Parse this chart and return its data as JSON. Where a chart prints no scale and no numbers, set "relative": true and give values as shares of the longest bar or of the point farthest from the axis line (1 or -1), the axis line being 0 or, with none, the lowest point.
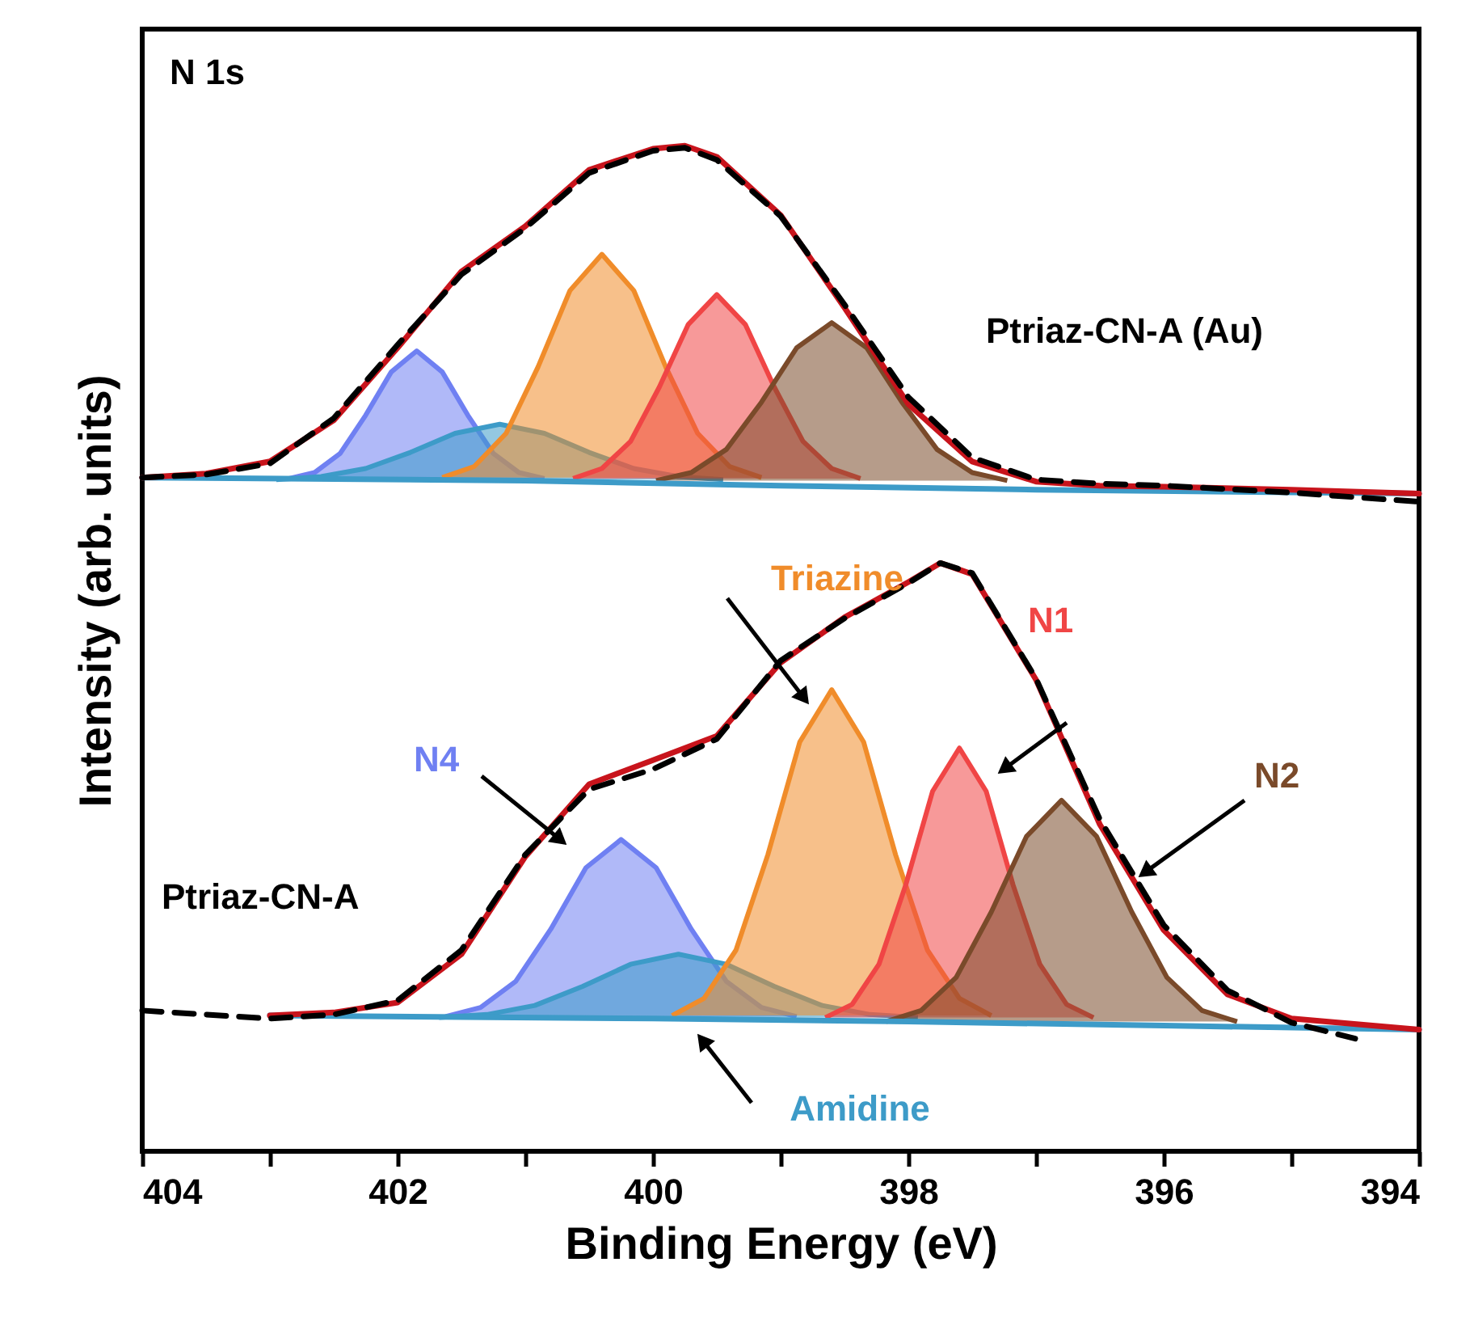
{
  "chart_data": {
    "type": "line",
    "relative": true,
    "xlabel": "Binding  Energy (eV)",
    "ylabel": "Intensity (arb. units)",
    "xlim": [
      404,
      394
    ],
    "xticks": [
      404,
      {
        "value": 403,
        "label": null
      },
      402,
      {
        "value": 401,
        "label": null
      },
      400,
      {
        "value": 399,
        "label": null
      },
      398,
      {
        "value": 397,
        "label": null
      },
      396,
      {
        "value": 395,
        "label": null
      },
      394
    ],
    "annotations": [
      "N 1s",
      "Ptriaz-CN-A (Au)",
      "Ptriaz-CN-A"
    ],
    "series": [
      {
        "type": "area",
        "color": "#6f80f2",
        "x": [
          402.85,
          402.65,
          402.45,
          402.25,
          402.05,
          401.85,
          401.65,
          401.45,
          401.25,
          401.05,
          400.85
        ],
        "values": [
          0.669,
          0.675,
          0.694,
          0.732,
          0.775,
          0.796,
          0.775,
          0.732,
          0.694,
          0.675,
          0.669
        ]
      },
      {
        "type": "area",
        "color": "#3d9bc8",
        "x": [
          402.95,
          402.6,
          402.25,
          401.9,
          401.55,
          401.2,
          400.85,
          400.5,
          400.15,
          399.8,
          399.45
        ],
        "values": [
          0.668,
          0.671,
          0.679,
          0.695,
          0.714,
          0.723,
          0.714,
          0.695,
          0.679,
          0.671,
          0.668
        ]
      },
      {
        "type": "area",
        "color": "#f08c2a",
        "x": [
          401.65,
          401.4,
          401.15,
          400.9,
          400.65,
          400.4,
          400.15,
          399.9,
          399.65,
          399.4,
          399.15
        ],
        "values": [
          0.67,
          0.681,
          0.714,
          0.78,
          0.856,
          0.892,
          0.856,
          0.78,
          0.714,
          0.681,
          0.67
        ]
      },
      {
        "type": "area",
        "color": "#f04545",
        "x": [
          400.625,
          400.4,
          400.175,
          399.95,
          399.725,
          399.5,
          399.275,
          399.05,
          398.825,
          398.6,
          398.375
        ],
        "values": [
          0.669,
          0.679,
          0.706,
          0.76,
          0.822,
          0.852,
          0.822,
          0.76,
          0.706,
          0.679,
          0.669
        ]
      },
      {
        "type": "area",
        "color": "#7a4a2a",
        "x": [
          399.975,
          399.7,
          399.425,
          399.15,
          398.875,
          398.6,
          398.325,
          398.05,
          397.775,
          397.5,
          397.225
        ],
        "values": [
          0.667,
          0.675,
          0.698,
          0.745,
          0.799,
          0.824,
          0.799,
          0.745,
          0.698,
          0.675,
          0.667
        ]
      },
      {
        "type": "area",
        "name": "N4",
        "color": "#6f80f2",
        "x": [
          401.625,
          401.35,
          401.075,
          400.8,
          400.525,
          400.25,
          399.975,
          399.7,
          399.425,
          399.15,
          398.875
        ],
        "values": [
          0.134,
          0.143,
          0.169,
          0.221,
          0.282,
          0.31,
          0.282,
          0.221,
          0.169,
          0.143,
          0.134
        ]
      },
      {
        "type": "area",
        "name": "Amidine",
        "color": "#3d9bc8",
        "x": [
          401.675,
          401.3,
          400.925,
          400.55,
          400.175,
          399.8,
          399.425,
          399.05,
          398.675,
          398.3,
          397.925
        ],
        "values": [
          0.133,
          0.136,
          0.145,
          0.164,
          0.186,
          0.196,
          0.186,
          0.164,
          0.145,
          0.136,
          0.133
        ]
      },
      {
        "type": "area",
        "name": "Triazine",
        "color": "#f08c2a",
        "x": [
          399.85,
          399.6,
          399.35,
          399.1,
          398.85,
          398.6,
          398.35,
          398.1,
          397.85,
          397.6,
          397.35
        ],
        "values": [
          0.135,
          0.152,
          0.2,
          0.295,
          0.407,
          0.459,
          0.407,
          0.295,
          0.2,
          0.152,
          0.135
        ]
      },
      {
        "type": "area",
        "name": "N1",
        "color": "#f04545",
        "x": [
          398.65,
          398.44,
          398.23,
          398.02,
          397.81,
          397.6,
          397.39,
          397.18,
          396.97,
          396.76,
          396.55
        ],
        "values": [
          0.133,
          0.146,
          0.186,
          0.265,
          0.358,
          0.401,
          0.358,
          0.265,
          0.186,
          0.146,
          0.133
        ]
      },
      {
        "type": "area",
        "name": "N2",
        "color": "#7a4a2a",
        "x": [
          398.175,
          397.9,
          397.625,
          397.35,
          397.075,
          396.8,
          396.525,
          396.25,
          395.975,
          395.7,
          395.425
        ],
        "values": [
          0.129,
          0.14,
          0.173,
          0.238,
          0.313,
          0.349,
          0.313,
          0.238,
          0.173,
          0.14,
          0.129
        ]
      },
      {
        "color": "#3d9bc8",
        "x": [
          404,
          401,
          399,
          397,
          394
        ],
        "values": [
          0.67,
          0.667,
          0.662,
          0.658,
          0.654
        ]
      },
      {
        "color": "#3d9bc8",
        "x": [
          403,
          400,
          398,
          396,
          394
        ],
        "values": [
          0.135,
          0.132,
          0.129,
          0.125,
          0.121
        ]
      },
      {
        "color": "#c8141c",
        "x": [
          404,
          403.5,
          403,
          402.5,
          402,
          401.5,
          401,
          400.5,
          400,
          399.75,
          399.5,
          399,
          398.5,
          398,
          397.5,
          397,
          396.5,
          396,
          395,
          394
        ],
        "values": [
          0.67,
          0.674,
          0.686,
          0.727,
          0.799,
          0.875,
          0.92,
          0.976,
          0.997,
          1.0,
          0.989,
          0.931,
          0.839,
          0.743,
          0.686,
          0.666,
          0.662,
          0.661,
          0.658,
          0.654
        ]
      },
      {
        "color": "#c8141c",
        "x": [
          403,
          402.5,
          402,
          401.5,
          401,
          400.5,
          400,
          399.5,
          399,
          398.5,
          398,
          397.75,
          397.5,
          397,
          396.5,
          396,
          395.5,
          395,
          394
        ],
        "values": [
          0.135,
          0.138,
          0.148,
          0.196,
          0.293,
          0.365,
          0.389,
          0.413,
          0.486,
          0.531,
          0.566,
          0.585,
          0.574,
          0.469,
          0.325,
          0.22,
          0.156,
          0.132,
          0.121
        ]
      },
      {
        "color": "#000000",
        "line_style": "dashed",
        "x": [
          404,
          403.5,
          403,
          402.5,
          402,
          401.5,
          401,
          400.5,
          400,
          399.75,
          399.5,
          399,
          398.5,
          398,
          397.5,
          397,
          396.5,
          396,
          395,
          394
        ],
        "values": [
          0.67,
          0.673,
          0.684,
          0.729,
          0.802,
          0.872,
          0.918,
          0.973,
          0.995,
          0.998,
          0.986,
          0.93,
          0.842,
          0.75,
          0.69,
          0.668,
          0.664,
          0.662,
          0.655,
          0.646
        ]
      },
      {
        "color": "#000000",
        "line_style": "dashed",
        "x": [
          404,
          403.5,
          403,
          402.5,
          402,
          401.5,
          401,
          400.5,
          400,
          399.5,
          399,
          398.5,
          398,
          397.75,
          397.5,
          397,
          396.5,
          396,
          395.5,
          395,
          394.5
        ],
        "values": [
          0.14,
          0.136,
          0.132,
          0.136,
          0.15,
          0.2,
          0.295,
          0.36,
          0.38,
          0.41,
          0.488,
          0.53,
          0.565,
          0.585,
          0.575,
          0.47,
          0.33,
          0.225,
          0.16,
          0.128,
          0.112
        ]
      }
    ]
  }
}
